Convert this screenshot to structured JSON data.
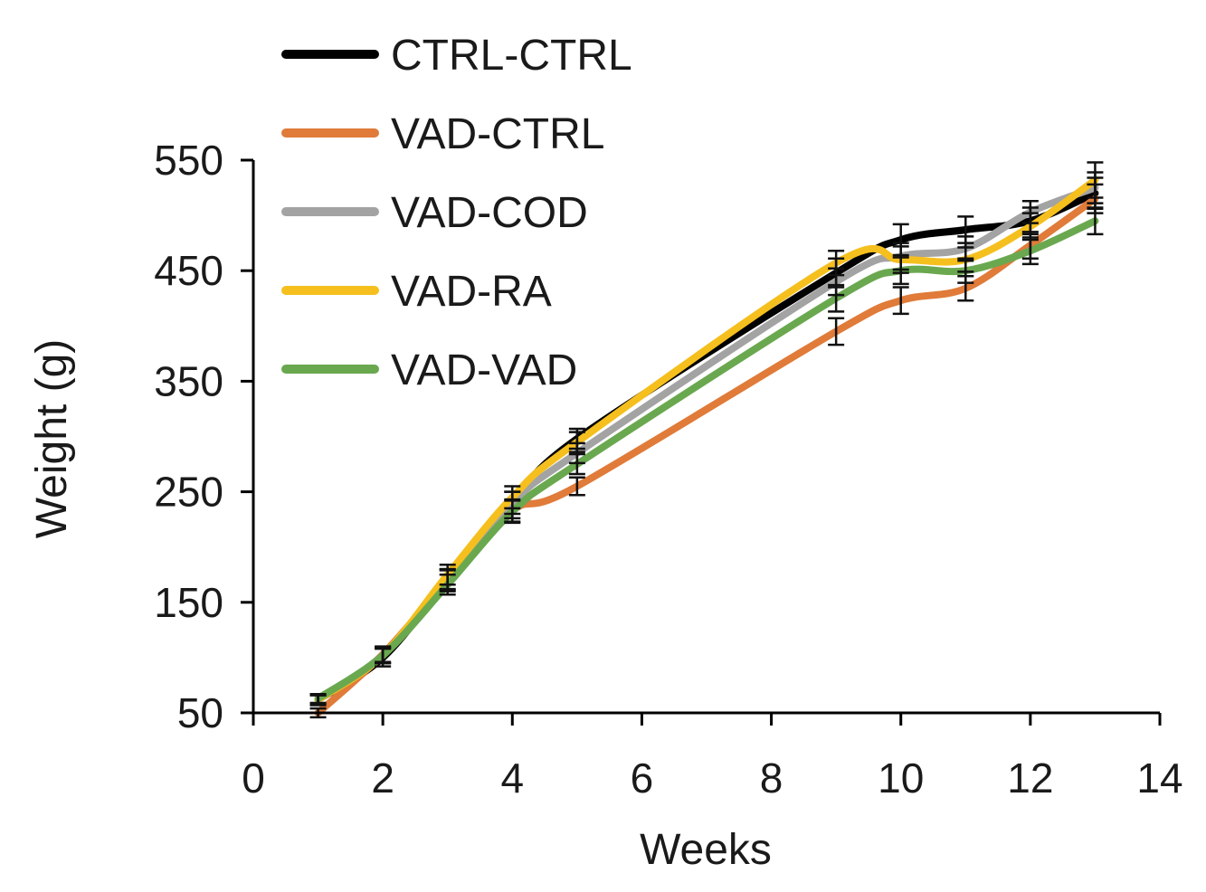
{
  "chart_data": {
    "type": "line",
    "title": "",
    "xlabel": "Weeks",
    "ylabel": "Weight (g)",
    "xlim": [
      0,
      14
    ],
    "ylim": [
      50,
      550
    ],
    "xticks": [
      0,
      2,
      4,
      6,
      8,
      10,
      12,
      14
    ],
    "yticks": [
      50,
      150,
      250,
      350,
      450,
      550
    ],
    "grid": false,
    "legend_position": "top-left",
    "x": [
      1,
      2,
      3,
      4,
      5,
      9,
      10,
      11,
      12,
      13
    ],
    "series": [
      {
        "name": "CTRL-CTRL",
        "color": "#000000",
        "values": [
          62,
          100,
          170,
          238,
          298,
          448,
          478,
          487,
          495,
          520
        ],
        "errors": [
          5,
          8,
          10,
          12,
          9,
          13,
          14,
          12,
          12,
          14
        ]
      },
      {
        "name": "VAD-CTRL",
        "color": "#e07b39",
        "values": [
          50,
          103,
          170,
          233,
          255,
          395,
          423,
          434,
          473,
          515
        ],
        "errors": [
          4,
          7,
          9,
          10,
          8,
          12,
          12,
          11,
          12,
          13
        ]
      },
      {
        "name": "VAD-COD",
        "color": "#a3a3a3",
        "values": [
          62,
          102,
          171,
          240,
          285,
          440,
          463,
          470,
          503,
          525
        ],
        "errors": [
          4,
          7,
          9,
          10,
          9,
          12,
          12,
          11,
          10,
          14
        ]
      },
      {
        "name": "VAD-RA",
        "color": "#f5bf1e",
        "values": [
          62,
          102,
          175,
          245,
          295,
          457,
          460,
          460,
          490,
          532
        ],
        "errors": [
          4,
          7,
          9,
          10,
          9,
          11,
          12,
          11,
          12,
          16
        ]
      },
      {
        "name": "VAD-VAD",
        "color": "#6aa84f",
        "values": [
          63,
          102,
          166,
          232,
          275,
          425,
          450,
          450,
          468,
          495
        ],
        "errors": [
          4,
          7,
          9,
          10,
          9,
          12,
          12,
          11,
          12,
          12
        ]
      }
    ]
  }
}
